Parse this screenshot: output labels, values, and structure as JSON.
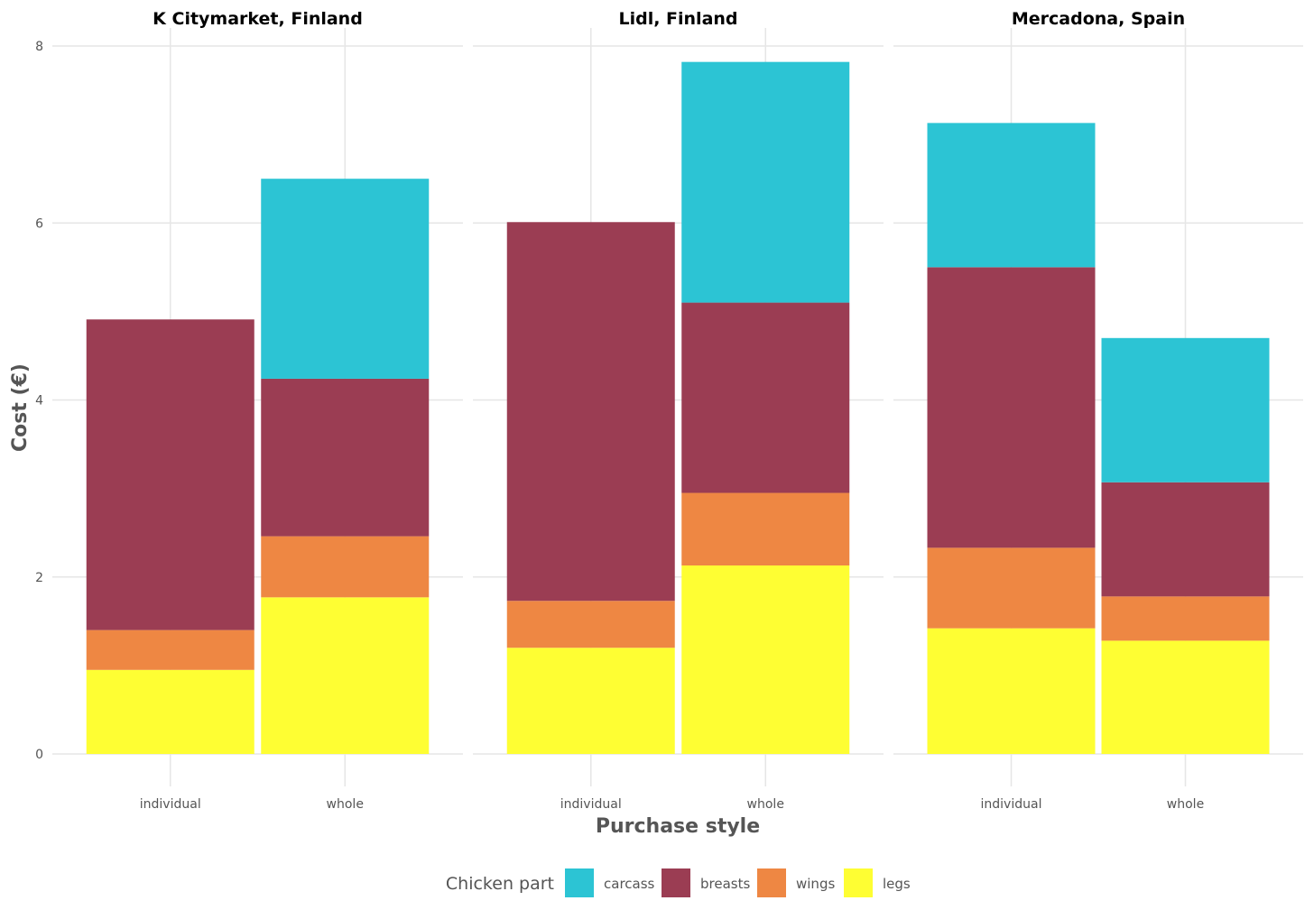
{
  "chart_data": {
    "type": "bar",
    "stacked": true,
    "facet_by": "store",
    "facets": [
      {
        "title": "K Citymarket, Finland",
        "categories": [
          "individual",
          "whole"
        ],
        "series": [
          {
            "name": "legs",
            "values": [
              0.95,
              1.77
            ]
          },
          {
            "name": "wings",
            "values": [
              0.45,
              0.69
            ]
          },
          {
            "name": "breasts",
            "values": [
              3.51,
              1.78
            ]
          },
          {
            "name": "carcass",
            "values": [
              0.0,
              2.26
            ]
          }
        ]
      },
      {
        "title": "Lidl, Finland",
        "categories": [
          "individual",
          "whole"
        ],
        "series": [
          {
            "name": "legs",
            "values": [
              1.2,
              2.13
            ]
          },
          {
            "name": "wings",
            "values": [
              0.53,
              0.82
            ]
          },
          {
            "name": "breasts",
            "values": [
              4.28,
              2.15
            ]
          },
          {
            "name": "carcass",
            "values": [
              0.0,
              2.72
            ]
          }
        ]
      },
      {
        "title": "Mercadona, Spain",
        "categories": [
          "individual",
          "whole"
        ],
        "series": [
          {
            "name": "legs",
            "values": [
              1.42,
              1.28
            ]
          },
          {
            "name": "wings",
            "values": [
              0.91,
              0.5
            ]
          },
          {
            "name": "breasts",
            "values": [
              3.17,
              1.29
            ]
          },
          {
            "name": "carcass",
            "values": [
              1.63,
              1.63
            ]
          }
        ]
      }
    ],
    "xlabel": "Purchase style",
    "ylabel": "Cost (€)",
    "ylim": [
      0,
      8
    ],
    "yticks": [
      0,
      2,
      4,
      6,
      8
    ],
    "ytick_labels": [
      "0",
      "2",
      "4",
      "6",
      "8"
    ],
    "grid": true,
    "legend": {
      "title": "Chicken part",
      "position": "bottom",
      "entries": [
        "carcass",
        "breasts",
        "wings",
        "legs"
      ]
    },
    "colors": {
      "carcass": "#2cc4d4",
      "breasts": "#9b3d53",
      "wings": "#ee8743",
      "legs": "#fefe33"
    }
  }
}
